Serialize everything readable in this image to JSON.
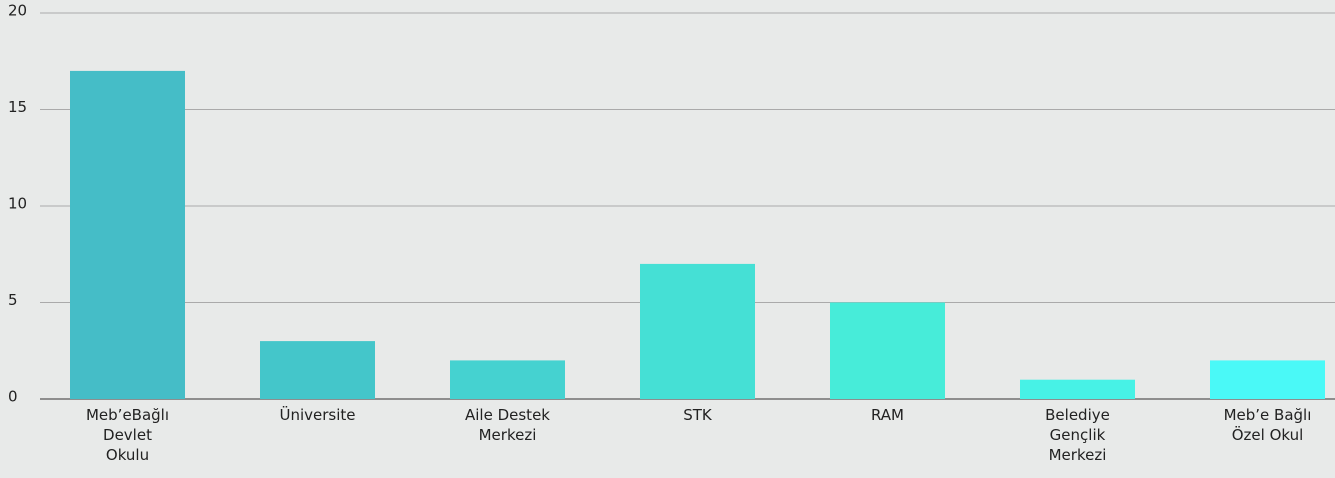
{
  "chart_data": {
    "type": "bar",
    "categories": [
      "Meb’eBağlı\nDevlet\nOkulu",
      "Üniversite",
      "Aile Destek\nMerkezi",
      "STK",
      "RAM",
      "Belediye\nGençlik\nMerkezi",
      "Meb’e Bağlı\nÖzel Okul"
    ],
    "values": [
      17,
      3,
      2,
      7,
      5,
      1,
      2
    ],
    "colors": [
      "#45bdc7",
      "#44c6ca",
      "#45d2d0",
      "#45e0d5",
      "#47ecd9",
      "#47f2e6",
      "#4af9f7"
    ],
    "ylim": [
      0,
      20
    ],
    "yticks": [
      0,
      5,
      10,
      15,
      20
    ],
    "grid": true
  }
}
